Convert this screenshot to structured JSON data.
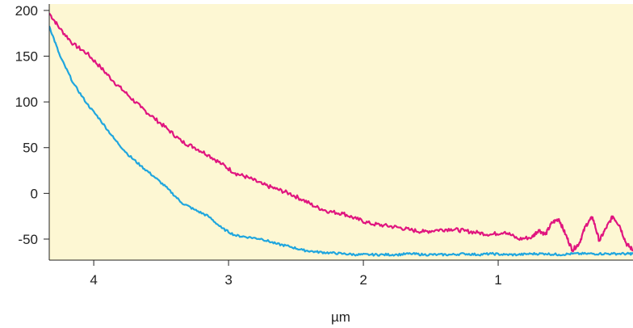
{
  "chart_data": {
    "type": "line",
    "title": "",
    "xlabel": "µm",
    "ylabel": "",
    "xlim": [
      4.33,
      0.0
    ],
    "ylim": [
      -73,
      207
    ],
    "x_reversed": true,
    "grid": false,
    "legend": "none",
    "plot_background": "#fdf7d3",
    "xticks": [
      4,
      3,
      2,
      1
    ],
    "xtick_labels": [
      "4",
      "3",
      "2",
      "1"
    ],
    "yticks": [
      200,
      150,
      100,
      50,
      0,
      -50
    ],
    "ytick_labels": [
      "200",
      "150",
      "100",
      "50",
      "0",
      "-50"
    ],
    "series": [
      {
        "color": "#e0157f",
        "x": [
          4.33,
          4.25,
          4.15,
          4.05,
          3.95,
          3.85,
          3.75,
          3.65,
          3.55,
          3.45,
          3.35,
          3.25,
          3.15,
          3.05,
          2.95,
          2.85,
          2.75,
          2.65,
          2.55,
          2.45,
          2.35,
          2.25,
          2.15,
          2.05,
          1.95,
          1.85,
          1.75,
          1.65,
          1.55,
          1.45,
          1.35,
          1.25,
          1.15,
          1.05,
          0.95,
          0.85,
          0.75,
          0.7,
          0.65,
          0.6,
          0.55,
          0.5,
          0.45,
          0.4,
          0.35,
          0.3,
          0.25,
          0.2,
          0.15,
          0.1,
          0.05,
          0.0
        ],
        "y": [
          197,
          180,
          163,
          153,
          138,
          122,
          108,
          94,
          82,
          70,
          57,
          50,
          42,
          32,
          22,
          17,
          10,
          5,
          0,
          -7,
          -15,
          -20,
          -22,
          -28,
          -33,
          -35,
          -37,
          -40,
          -42,
          -40,
          -39,
          -41,
          -43,
          -45,
          -42,
          -50,
          -48,
          -40,
          -45,
          -32,
          -28,
          -45,
          -62,
          -55,
          -35,
          -26,
          -52,
          -38,
          -25,
          -35,
          -55,
          -62
        ]
      },
      {
        "color": "#1fa6de",
        "x": [
          4.33,
          4.25,
          4.15,
          4.05,
          3.95,
          3.85,
          3.75,
          3.65,
          3.55,
          3.45,
          3.35,
          3.25,
          3.15,
          3.05,
          2.95,
          2.85,
          2.75,
          2.65,
          2.55,
          2.45,
          2.35,
          2.25,
          2.15,
          2.05,
          1.95,
          1.85,
          1.75,
          1.65,
          1.55,
          1.45,
          1.35,
          1.25,
          1.15,
          1.05,
          0.95,
          0.85,
          0.75,
          0.65,
          0.55,
          0.45,
          0.35,
          0.25,
          0.15,
          0.05,
          0.0
        ],
        "y": [
          183,
          150,
          120,
          98,
          80,
          60,
          43,
          30,
          18,
          5,
          -10,
          -18,
          -25,
          -38,
          -46,
          -48,
          -50,
          -55,
          -58,
          -62,
          -64,
          -65,
          -66,
          -67,
          -67,
          -67,
          -67,
          -66,
          -67,
          -67,
          -67,
          -66,
          -67,
          -66,
          -67,
          -67,
          -66,
          -66,
          -67,
          -66,
          -66,
          -66,
          -66,
          -66,
          -66
        ]
      }
    ]
  }
}
